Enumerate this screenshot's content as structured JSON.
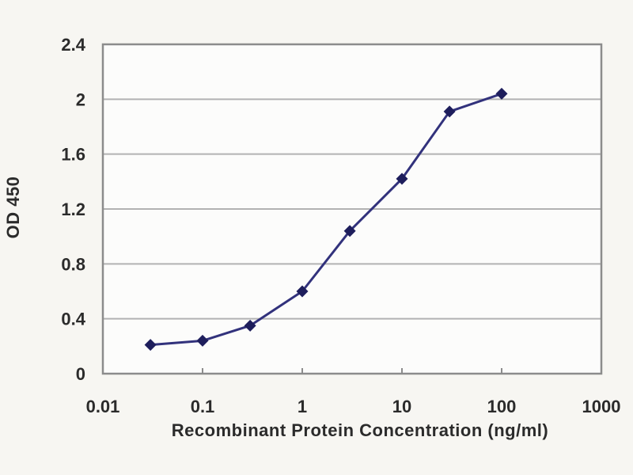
{
  "figure": {
    "background": "#f7f6f2",
    "plot_background": "#fcfcfb",
    "border_color": "#8c8c8c",
    "gridline_color": "#b2b2b2",
    "line_color": "#32327c",
    "marker_color": "#1e1e5c",
    "text_color": "#2b2b2b"
  },
  "chart_data": {
    "type": "line",
    "title": "",
    "xlabel": "Recombinant Protein Concentration (ng/ml)",
    "ylabel": "OD 450",
    "x_scale": "log",
    "xlim": [
      0.01,
      1000
    ],
    "ylim": [
      0,
      2.4
    ],
    "x_ticks": [
      0.01,
      0.1,
      1,
      10,
      100,
      1000
    ],
    "x_tick_labels": [
      "0.01",
      "0.1",
      "1",
      "10",
      "100",
      "1000"
    ],
    "y_ticks": [
      0,
      0.4,
      0.8,
      1.2,
      1.6,
      2,
      2.4
    ],
    "y_tick_labels": [
      "0",
      "0.4",
      "0.8",
      "1.2",
      "1.6",
      "2",
      "2.4"
    ],
    "grid": "horizontal",
    "legend": "none",
    "series": [
      {
        "name": "OD 450",
        "marker": "diamond",
        "x": [
          0.03,
          0.1,
          0.3,
          1,
          3,
          10,
          30,
          100
        ],
        "y": [
          0.21,
          0.24,
          0.35,
          0.6,
          1.04,
          1.42,
          1.91,
          2.04
        ]
      }
    ]
  }
}
